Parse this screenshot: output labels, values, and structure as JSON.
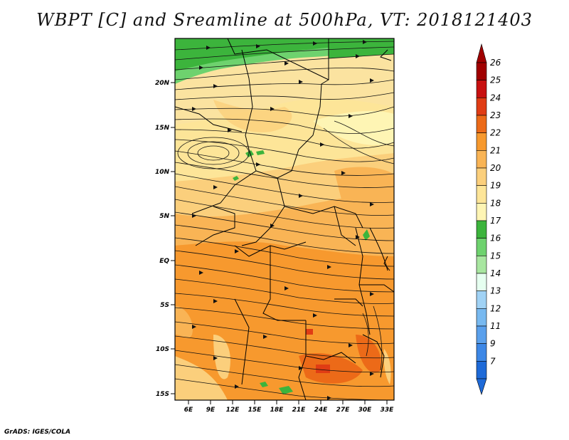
{
  "title": "WBPT [C] and Sreamline at 500hPa, VT: 2018121403",
  "footer": "GrADS: IGES/COLA",
  "map": {
    "lat_labels": [
      "20N",
      "15N",
      "10N",
      "5N",
      "EQ",
      "5S",
      "10S",
      "15S"
    ],
    "lon_labels": [
      "6E",
      "9E",
      "12E",
      "15E",
      "18E",
      "21E",
      "24E",
      "27E",
      "30E",
      "33E"
    ],
    "field_colors": {
      "green_dark": "#3cb43c",
      "green_mid": "#6ed26e",
      "green_light": "#a8e6a0",
      "yellow_light": "#fef5b4",
      "yellow": "#fde598",
      "tan": "#fbcf7c",
      "orange_light": "#f9b455",
      "orange": "#f7992e",
      "orange_dark": "#ec6a18",
      "red": "#e03c14"
    }
  },
  "colorbar": {
    "labels": [
      "26",
      "25",
      "24",
      "23",
      "22",
      "21",
      "20",
      "19",
      "18",
      "17",
      "16",
      "15",
      "14",
      "13",
      "12",
      "11",
      "9",
      "7"
    ],
    "colors": [
      "#a00000",
      "#c81010",
      "#e03c14",
      "#ec6a18",
      "#f7992e",
      "#f9b455",
      "#fbcf7c",
      "#fde598",
      "#fef5b4",
      "#3cb43c",
      "#6ed26e",
      "#a8e6a0",
      "#e6fff0",
      "#a0d2f5",
      "#78b9f0",
      "#5aa0ec",
      "#3c87e6",
      "#1e6ad8"
    ]
  }
}
